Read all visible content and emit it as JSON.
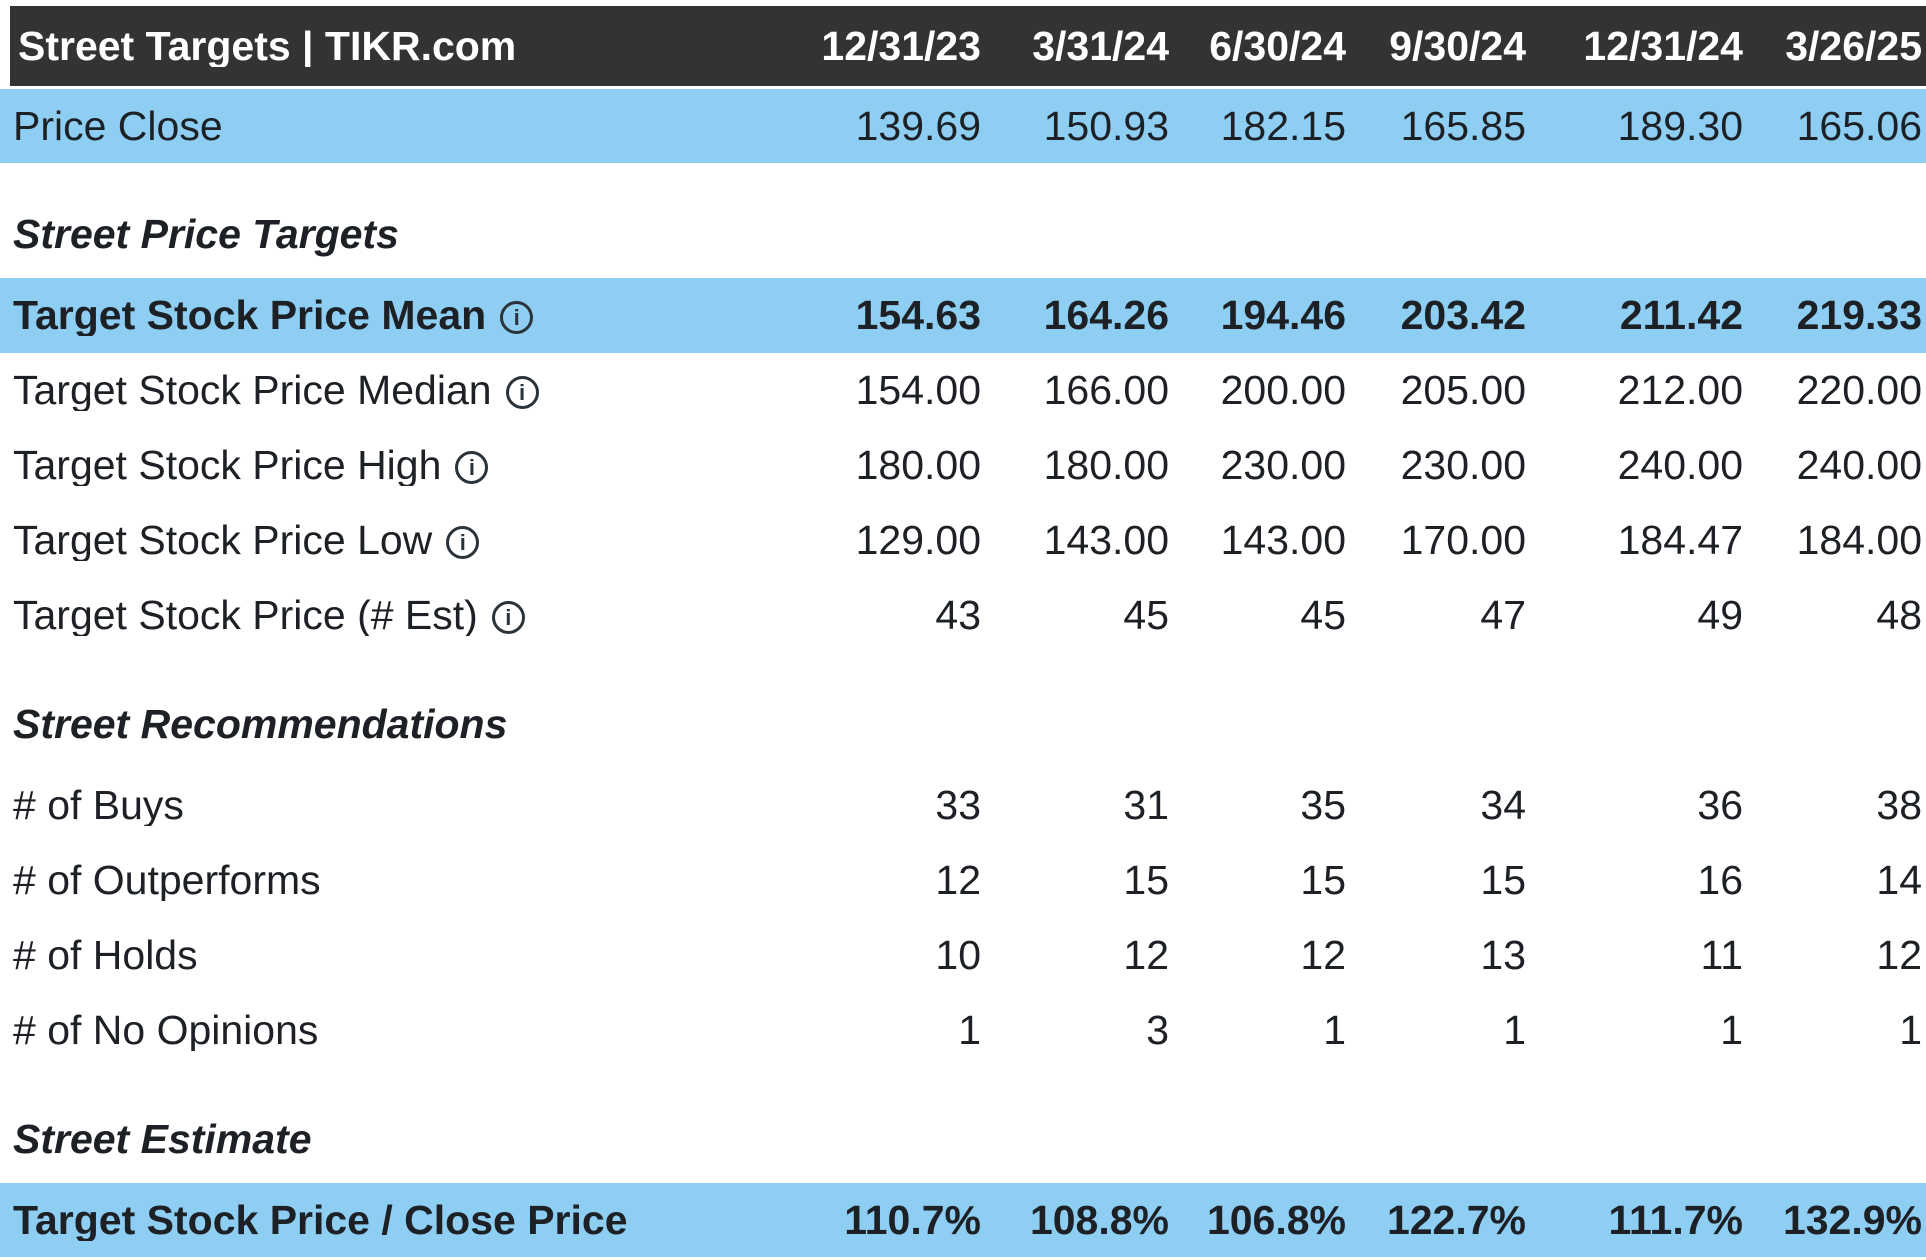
{
  "header": {
    "title": "Street Targets | TIKR.com",
    "dates": [
      "12/31/23",
      "3/31/24",
      "6/30/24",
      "9/30/24",
      "12/31/24",
      "3/26/25"
    ]
  },
  "sections": {
    "price_targets": "Street Price Targets",
    "recommendations": "Street Recommendations",
    "estimate": "Street Estimate"
  },
  "rows": {
    "price_close": {
      "label": "Price Close",
      "values": [
        "139.69",
        "150.93",
        "182.15",
        "165.85",
        "189.30",
        "165.06"
      ]
    },
    "mean": {
      "label": "Target Stock Price Mean",
      "values": [
        "154.63",
        "164.26",
        "194.46",
        "203.42",
        "211.42",
        "219.33"
      ]
    },
    "median": {
      "label": "Target Stock Price Median",
      "values": [
        "154.00",
        "166.00",
        "200.00",
        "205.00",
        "212.00",
        "220.00"
      ]
    },
    "high": {
      "label": "Target Stock Price High",
      "values": [
        "180.00",
        "180.00",
        "230.00",
        "230.00",
        "240.00",
        "240.00"
      ]
    },
    "low": {
      "label": "Target Stock Price Low",
      "values": [
        "129.00",
        "143.00",
        "143.00",
        "170.00",
        "184.47",
        "184.00"
      ]
    },
    "num_est": {
      "label": "Target Stock Price (# Est)",
      "values": [
        "43",
        "45",
        "45",
        "47",
        "49",
        "48"
      ]
    },
    "buys": {
      "label": "# of Buys",
      "values": [
        "33",
        "31",
        "35",
        "34",
        "36",
        "38"
      ]
    },
    "outperforms": {
      "label": "# of Outperforms",
      "values": [
        "12",
        "15",
        "15",
        "15",
        "16",
        "14"
      ]
    },
    "holds": {
      "label": "# of Holds",
      "values": [
        "10",
        "12",
        "12",
        "13",
        "11",
        "12"
      ]
    },
    "no_opinions": {
      "label": "# of No Opinions",
      "values": [
        "1",
        "3",
        "1",
        "1",
        "1",
        "1"
      ]
    },
    "ratio": {
      "label": "Target Stock Price / Close Price",
      "values": [
        "110.7%",
        "108.8%",
        "106.8%",
        "122.7%",
        "111.7%",
        "132.9%"
      ]
    }
  },
  "icons": {
    "info": "i"
  },
  "colors": {
    "header_bg": "#333333",
    "header_text": "#ffffff",
    "highlight_row_bg": "#8dcef2",
    "body_text": "#1d2126"
  },
  "chart_data": {
    "type": "table",
    "title": "Street Targets | TIKR.com",
    "columns": [
      "12/31/23",
      "3/31/24",
      "6/30/24",
      "9/30/24",
      "12/31/24",
      "3/26/25"
    ],
    "rows": [
      {
        "label": "Price Close",
        "values": [
          139.69,
          150.93,
          182.15,
          165.85,
          189.3,
          165.06
        ]
      },
      {
        "section": "Street Price Targets"
      },
      {
        "label": "Target Stock Price Mean",
        "values": [
          154.63,
          164.26,
          194.46,
          203.42,
          211.42,
          219.33
        ]
      },
      {
        "label": "Target Stock Price Median",
        "values": [
          154.0,
          166.0,
          200.0,
          205.0,
          212.0,
          220.0
        ]
      },
      {
        "label": "Target Stock Price High",
        "values": [
          180.0,
          180.0,
          230.0,
          230.0,
          240.0,
          240.0
        ]
      },
      {
        "label": "Target Stock Price Low",
        "values": [
          129.0,
          143.0,
          143.0,
          170.0,
          184.47,
          184.0
        ]
      },
      {
        "label": "Target Stock Price (# Est)",
        "values": [
          43,
          45,
          45,
          47,
          49,
          48
        ]
      },
      {
        "section": "Street Recommendations"
      },
      {
        "label": "# of Buys",
        "values": [
          33,
          31,
          35,
          34,
          36,
          38
        ]
      },
      {
        "label": "# of Outperforms",
        "values": [
          12,
          15,
          15,
          15,
          16,
          14
        ]
      },
      {
        "label": "# of Holds",
        "values": [
          10,
          12,
          12,
          13,
          11,
          12
        ]
      },
      {
        "label": "# of No Opinions",
        "values": [
          1,
          3,
          1,
          1,
          1,
          1
        ]
      },
      {
        "section": "Street Estimate"
      },
      {
        "label": "Target Stock Price / Close Price",
        "unit": "%",
        "values": [
          110.7,
          108.8,
          106.8,
          122.7,
          111.7,
          132.9
        ]
      }
    ]
  }
}
